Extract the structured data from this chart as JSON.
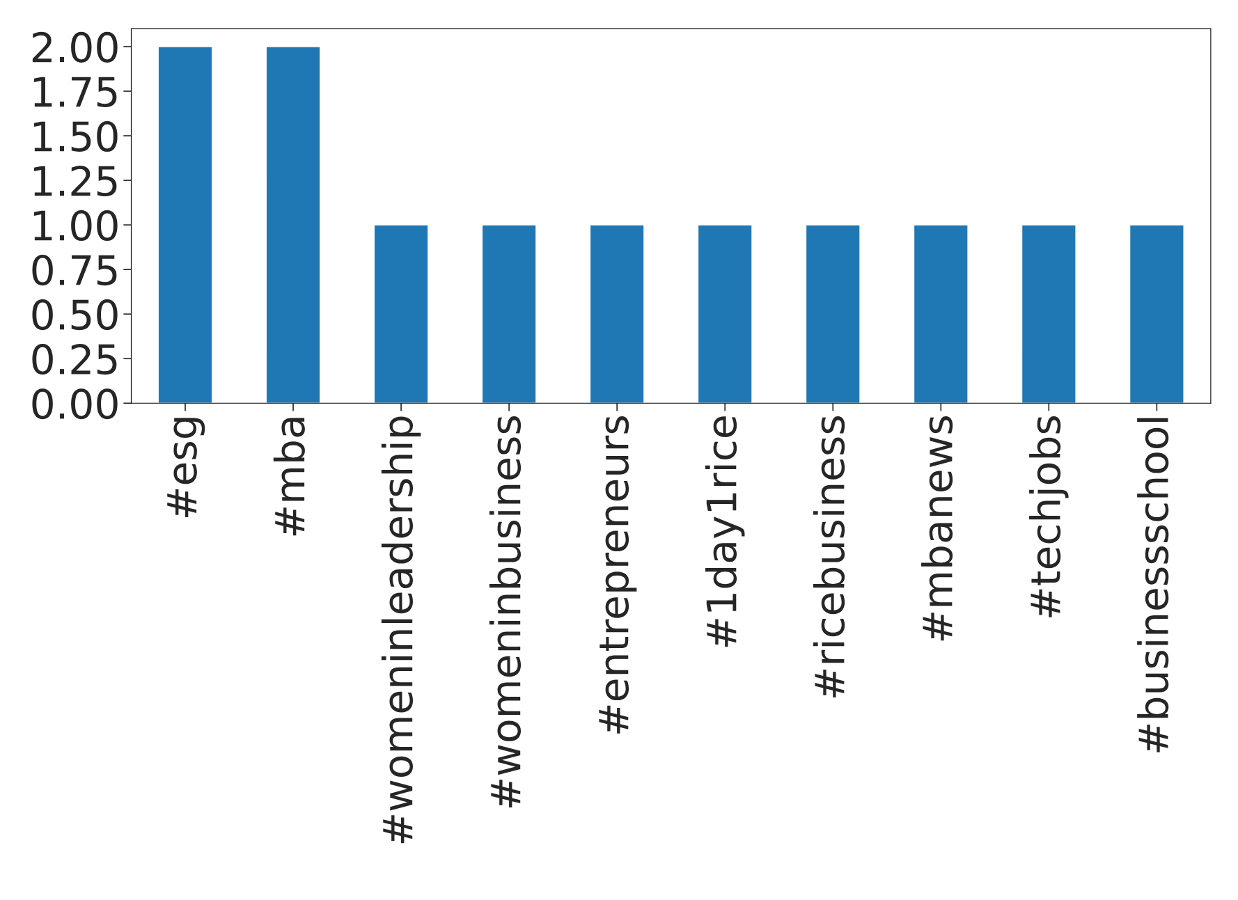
{
  "chart_data": {
    "type": "bar",
    "categories": [
      "#esg",
      "#mba",
      "#womeninleadership",
      "#womeninbusiness",
      "#entrepreneurs",
      "#1day1rice",
      "#ricebusiness",
      "#mbanews",
      "#techjobs",
      "#businessschool"
    ],
    "values": [
      2,
      2,
      1,
      1,
      1,
      1,
      1,
      1,
      1,
      1
    ],
    "color": "#1f77b4",
    "ylim": [
      0,
      2.1
    ],
    "yticks": [
      {
        "value": 0,
        "label": "0.00"
      },
      {
        "value": 0.25,
        "label": "0.25"
      },
      {
        "value": 0.5,
        "label": "0.50"
      },
      {
        "value": 0.75,
        "label": "0.75"
      },
      {
        "value": 1,
        "label": "1.00"
      },
      {
        "value": 1.25,
        "label": "1.25"
      },
      {
        "value": 1.5,
        "label": "1.50"
      },
      {
        "value": 1.75,
        "label": "1.75"
      },
      {
        "value": 2,
        "label": "2.00"
      }
    ],
    "grid": false
  }
}
